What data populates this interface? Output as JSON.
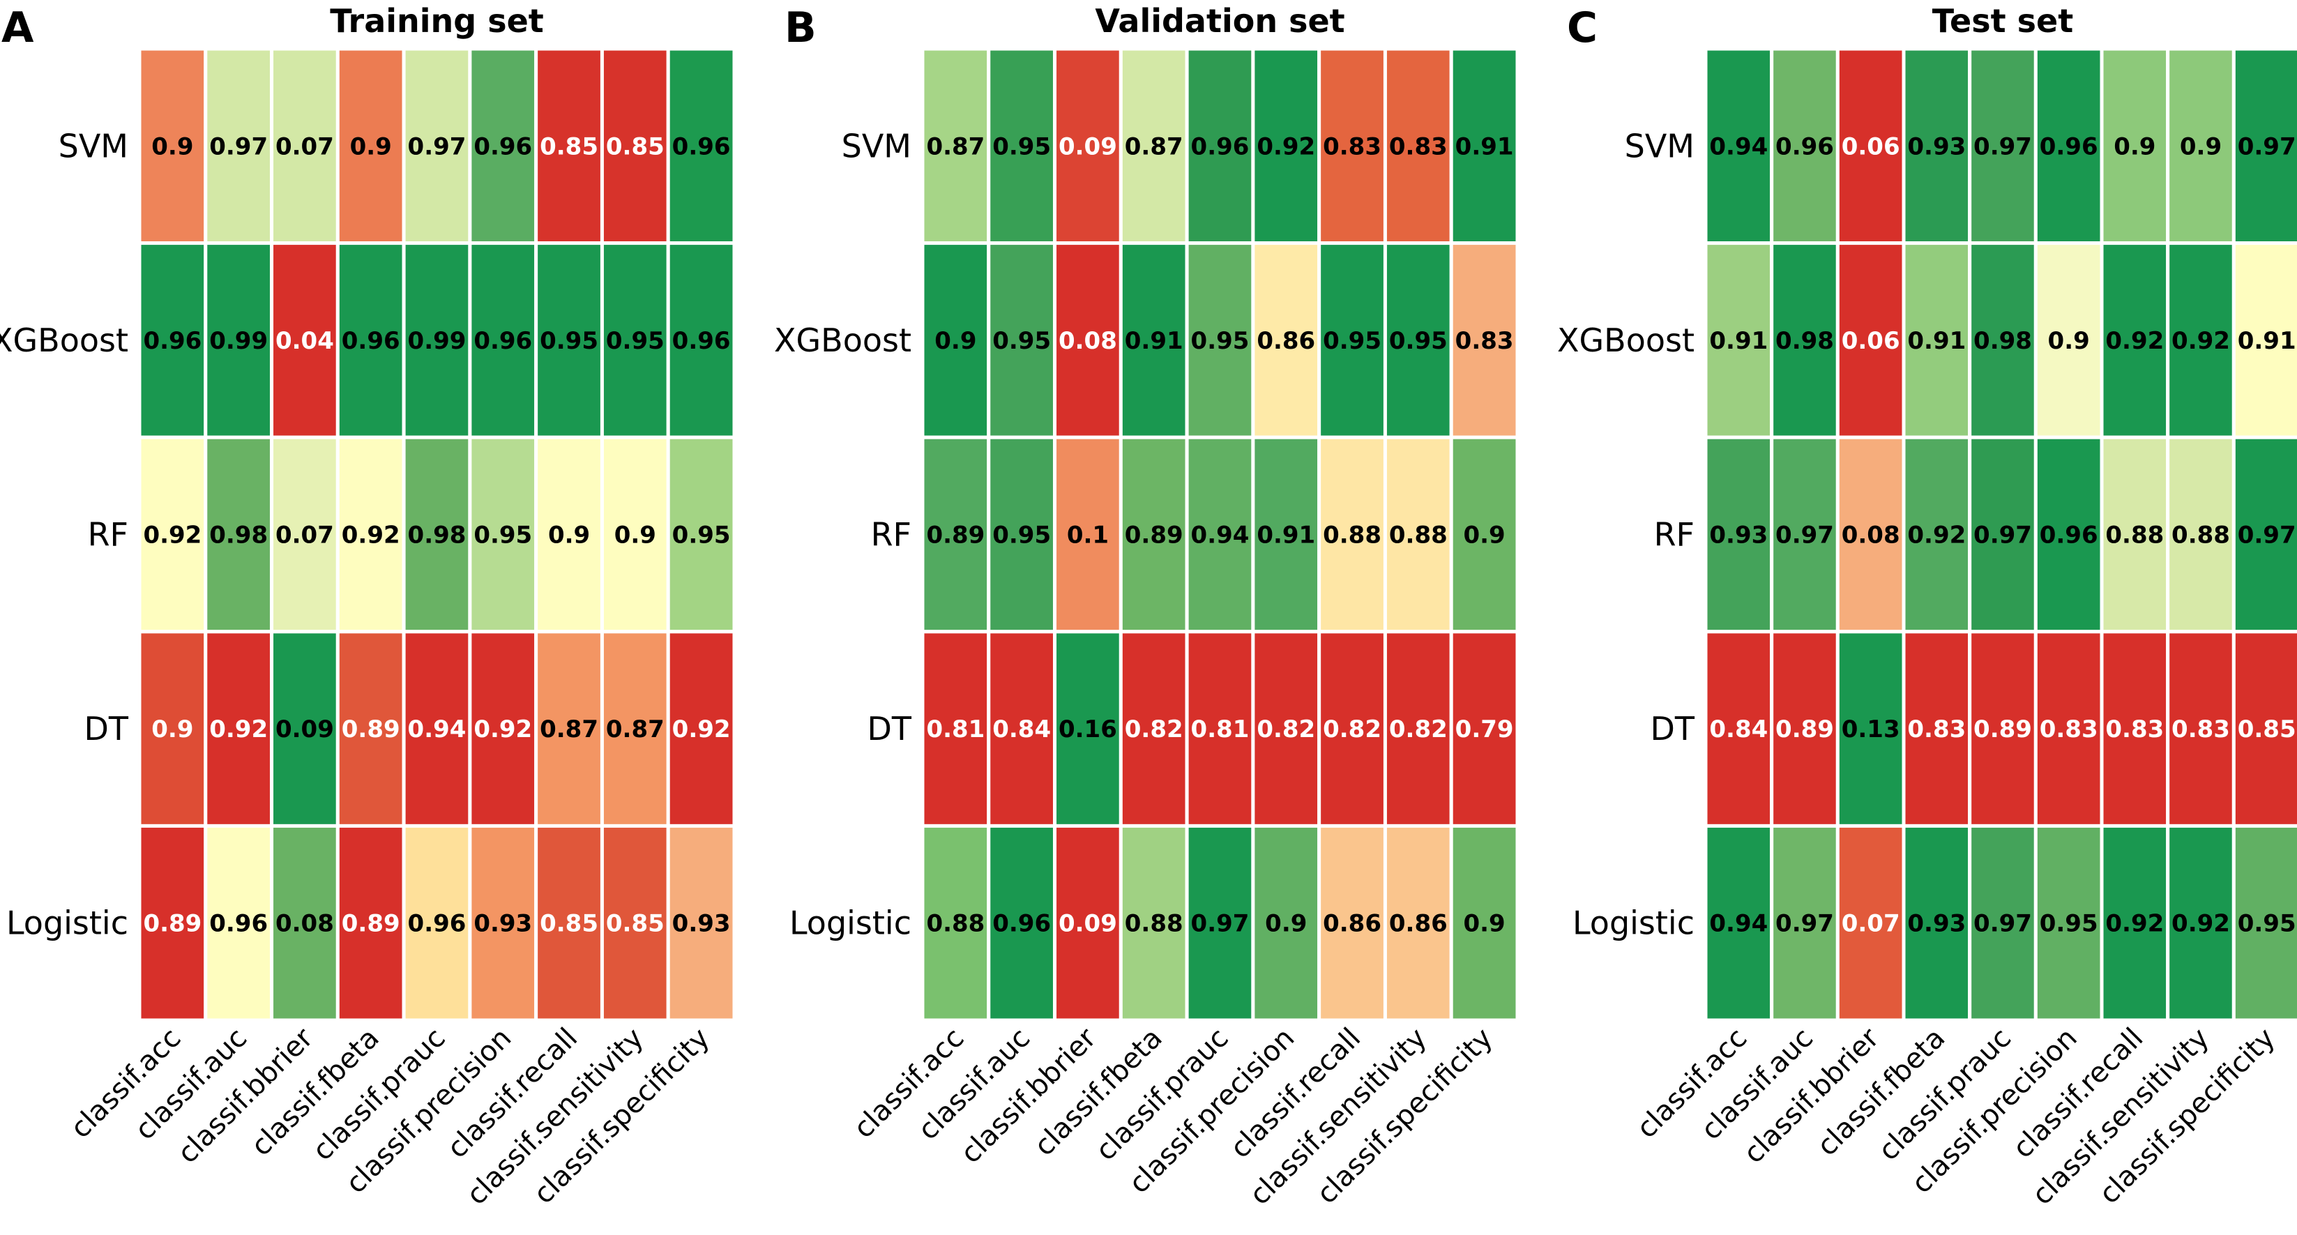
{
  "chart_data": [
    {
      "type": "heatmap",
      "panel": "A",
      "title": "Training set",
      "rows": [
        "SVM",
        "XGBoost",
        "RF",
        "DT",
        "Logistic"
      ],
      "columns": [
        "classif.acc",
        "classif.auc",
        "classif.bbrier",
        "classif.fbeta",
        "classif.prauc",
        "classif.precision",
        "classif.recall",
        "classif.sensitivity",
        "classif.specificity"
      ],
      "values": [
        [
          "0.9",
          "0.97",
          "0.07",
          "0.9",
          "0.97",
          "0.96",
          "0.85",
          "0.85",
          "0.96"
        ],
        [
          "0.96",
          "0.99",
          "0.04",
          "0.96",
          "0.99",
          "0.96",
          "0.95",
          "0.95",
          "0.96"
        ],
        [
          "0.92",
          "0.98",
          "0.07",
          "0.92",
          "0.98",
          "0.95",
          "0.9",
          "0.9",
          "0.95"
        ],
        [
          "0.9",
          "0.92",
          "0.09",
          "0.89",
          "0.94",
          "0.92",
          "0.87",
          "0.87",
          "0.92"
        ],
        [
          "0.89",
          "0.96",
          "0.08",
          "0.89",
          "0.96",
          "0.93",
          "0.85",
          "0.85",
          "0.93"
        ]
      ],
      "colors": [
        [
          "#ee8459",
          "#d3e8a6",
          "#d3e8a6",
          "#ec7c52",
          "#d3e8a6",
          "#5aad62",
          "#d7332b",
          "#d7332b",
          "#1d9a4f"
        ],
        [
          "#1a9850",
          "#1a9850",
          "#d7302a",
          "#1a9850",
          "#1a9850",
          "#1a9850",
          "#1a9850",
          "#1a9850",
          "#1a9850"
        ],
        [
          "#fefdbf",
          "#69b264",
          "#e6f1b4",
          "#fefdbf",
          "#69b264",
          "#b6dc92",
          "#fefdbf",
          "#fefdbf",
          "#a3d484"
        ],
        [
          "#de4d35",
          "#d7302a",
          "#1a9850",
          "#e0573a",
          "#d7302a",
          "#d7302a",
          "#f39563",
          "#f39563",
          "#d7302a"
        ],
        [
          "#d7302a",
          "#fefdbf",
          "#69b264",
          "#d7302a",
          "#fee09a",
          "#f39563",
          "#e0573a",
          "#e0573a",
          "#f6ad7c"
        ]
      ],
      "label_colors": [
        [
          "#000000",
          "#000000",
          "#000000",
          "#000000",
          "#000000",
          "#000000",
          "#ffffff",
          "#ffffff",
          "#000000"
        ],
        [
          "#000000",
          "#000000",
          "#ffffff",
          "#000000",
          "#000000",
          "#000000",
          "#000000",
          "#000000",
          "#000000"
        ],
        [
          "#000000",
          "#000000",
          "#000000",
          "#000000",
          "#000000",
          "#000000",
          "#000000",
          "#000000",
          "#000000"
        ],
        [
          "#ffffff",
          "#ffffff",
          "#000000",
          "#ffffff",
          "#ffffff",
          "#ffffff",
          "#000000",
          "#000000",
          "#ffffff"
        ],
        [
          "#ffffff",
          "#000000",
          "#000000",
          "#ffffff",
          "#000000",
          "#000000",
          "#ffffff",
          "#ffffff",
          "#000000"
        ]
      ]
    },
    {
      "type": "heatmap",
      "panel": "B",
      "title": "Validation set",
      "rows": [
        "SVM",
        "XGBoost",
        "RF",
        "DT",
        "Logistic"
      ],
      "columns": [
        "classif.acc",
        "classif.auc",
        "classif.bbrier",
        "classif.fbeta",
        "classif.prauc",
        "classif.precision",
        "classif.recall",
        "classif.sensitivity",
        "classif.specificity"
      ],
      "values": [
        [
          "0.87",
          "0.95",
          "0.09",
          "0.87",
          "0.96",
          "0.92",
          "0.83",
          "0.83",
          "0.91"
        ],
        [
          "0.9",
          "0.95",
          "0.08",
          "0.91",
          "0.95",
          "0.86",
          "0.95",
          "0.95",
          "0.83"
        ],
        [
          "0.89",
          "0.95",
          "0.1",
          "0.89",
          "0.94",
          "0.91",
          "0.88",
          "0.88",
          "0.9"
        ],
        [
          "0.81",
          "0.84",
          "0.16",
          "0.82",
          "0.81",
          "0.82",
          "0.82",
          "0.82",
          "0.79"
        ],
        [
          "0.88",
          "0.96",
          "0.09",
          "0.88",
          "0.97",
          "0.9",
          "0.86",
          "0.86",
          "0.9"
        ]
      ],
      "colors": [
        [
          "#a6d587",
          "#38a055",
          "#dc4433",
          "#d3e8a6",
          "#2f9b52",
          "#1a9850",
          "#e4653f",
          "#e4653f",
          "#1a9850"
        ],
        [
          "#1a9850",
          "#44a35a",
          "#d7302a",
          "#1a9850",
          "#61b063",
          "#feeaa8",
          "#1a9850",
          "#1a9850",
          "#f6ad7c"
        ],
        [
          "#52aa60",
          "#44a35a",
          "#f08c5e",
          "#6cb565",
          "#61b063",
          "#52aa60",
          "#fee6a5",
          "#fee6a5",
          "#6cb565"
        ],
        [
          "#d7302a",
          "#d7302a",
          "#1a9850",
          "#d7302a",
          "#d7302a",
          "#d7302a",
          "#d7302a",
          "#d7302a",
          "#d7302a"
        ],
        [
          "#7ac16e",
          "#1a9850",
          "#d7302a",
          "#a0d183",
          "#1a9850",
          "#61b063",
          "#fac58d",
          "#fac58d",
          "#6cb565"
        ]
      ],
      "label_colors": [
        [
          "#000000",
          "#000000",
          "#ffffff",
          "#000000",
          "#000000",
          "#000000",
          "#000000",
          "#000000",
          "#000000"
        ],
        [
          "#000000",
          "#000000",
          "#ffffff",
          "#000000",
          "#000000",
          "#000000",
          "#000000",
          "#000000",
          "#000000"
        ],
        [
          "#000000",
          "#000000",
          "#000000",
          "#000000",
          "#000000",
          "#000000",
          "#000000",
          "#000000",
          "#000000"
        ],
        [
          "#ffffff",
          "#ffffff",
          "#000000",
          "#ffffff",
          "#ffffff",
          "#ffffff",
          "#ffffff",
          "#ffffff",
          "#ffffff"
        ],
        [
          "#000000",
          "#000000",
          "#ffffff",
          "#000000",
          "#000000",
          "#000000",
          "#000000",
          "#000000",
          "#000000"
        ]
      ]
    },
    {
      "type": "heatmap",
      "panel": "C",
      "title": "Test set",
      "rows": [
        "SVM",
        "XGBoost",
        "RF",
        "DT",
        "Logistic"
      ],
      "columns": [
        "classif.acc",
        "classif.auc",
        "classif.bbrier",
        "classif.fbeta",
        "classif.prauc",
        "classif.precision",
        "classif.recall",
        "classif.sensitivity",
        "classif.specificity"
      ],
      "values": [
        [
          "0.94",
          "0.96",
          "0.06",
          "0.93",
          "0.97",
          "0.96",
          "0.9",
          "0.9",
          "0.97"
        ],
        [
          "0.91",
          "0.98",
          "0.06",
          "0.91",
          "0.98",
          "0.9",
          "0.92",
          "0.92",
          "0.91"
        ],
        [
          "0.93",
          "0.97",
          "0.08",
          "0.92",
          "0.97",
          "0.96",
          "0.88",
          "0.88",
          "0.97"
        ],
        [
          "0.84",
          "0.89",
          "0.13",
          "0.83",
          "0.89",
          "0.83",
          "0.83",
          "0.83",
          "0.85"
        ],
        [
          "0.94",
          "0.97",
          "0.07",
          "0.93",
          "0.97",
          "0.95",
          "0.92",
          "0.92",
          "0.95"
        ]
      ],
      "colors": [
        [
          "#1a9850",
          "#6fb668",
          "#d7302a",
          "#2b9b53",
          "#44a35a",
          "#1a9850",
          "#8dc97a",
          "#8dc97a",
          "#1a9850"
        ],
        [
          "#9ccf81",
          "#1a9850",
          "#d7302a",
          "#93cc7d",
          "#2b9b53",
          "#f5f9c2",
          "#1a9850",
          "#1a9850",
          "#fefdbf"
        ],
        [
          "#44a35a",
          "#52aa60",
          "#f6ad7c",
          "#52aa60",
          "#2f9b52",
          "#1a9850",
          "#d7e9a8",
          "#d7e9a8",
          "#1a9850"
        ],
        [
          "#d7302a",
          "#d7302a",
          "#1a9850",
          "#d7302a",
          "#d7302a",
          "#d7302a",
          "#d7302a",
          "#d7302a",
          "#d7302a"
        ],
        [
          "#1a9850",
          "#6fb668",
          "#e25a3b",
          "#1a9850",
          "#44a35a",
          "#61b063",
          "#1a9850",
          "#1a9850",
          "#61b063"
        ]
      ],
      "label_colors": [
        [
          "#000000",
          "#000000",
          "#ffffff",
          "#000000",
          "#000000",
          "#000000",
          "#000000",
          "#000000",
          "#000000"
        ],
        [
          "#000000",
          "#000000",
          "#ffffff",
          "#000000",
          "#000000",
          "#000000",
          "#000000",
          "#000000",
          "#000000"
        ],
        [
          "#000000",
          "#000000",
          "#000000",
          "#000000",
          "#000000",
          "#000000",
          "#000000",
          "#000000",
          "#000000"
        ],
        [
          "#ffffff",
          "#ffffff",
          "#000000",
          "#ffffff",
          "#ffffff",
          "#ffffff",
          "#ffffff",
          "#ffffff",
          "#ffffff"
        ],
        [
          "#000000",
          "#000000",
          "#ffffff",
          "#000000",
          "#000000",
          "#000000",
          "#000000",
          "#000000",
          "#000000"
        ]
      ]
    }
  ]
}
